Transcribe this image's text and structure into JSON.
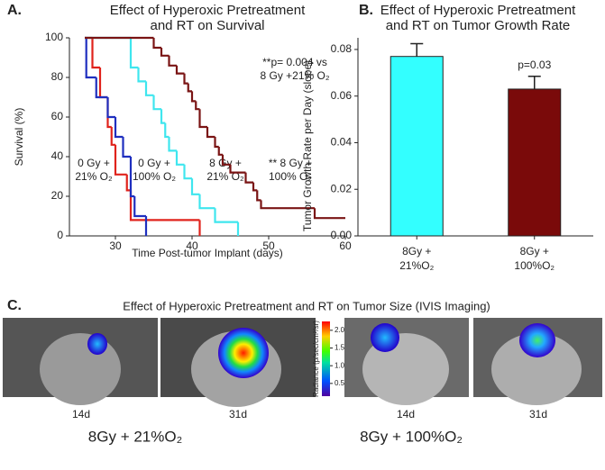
{
  "chart_data": [
    {
      "type": "step",
      "panel": "A.",
      "title": [
        "Effect of Hyperoxic Pretreatment",
        "and RT on Survival"
      ],
      "x_label": "Time Post-tumor Implant (days)",
      "y_label": "Survival (%)",
      "xlim": [
        24,
        60
      ],
      "xticks": [
        30,
        40,
        50,
        60
      ],
      "ylim": [
        0,
        100
      ],
      "yticks": [
        0,
        20,
        40,
        60,
        80,
        100
      ],
      "annotation": [
        "**p= 0.004 vs",
        "8 Gy +21% O₂"
      ],
      "series": [
        {
          "name_lines": [
            "0 Gy +",
            "21% O₂"
          ],
          "color": "#e0231c",
          "x": [
            26,
            27,
            28,
            29,
            29.5,
            30,
            31.5,
            32,
            41
          ],
          "values": [
            100,
            85,
            70,
            55,
            46,
            31,
            23,
            8,
            0
          ]
        },
        {
          "name_lines": [
            "0 Gy +",
            "100% O₂"
          ],
          "color": "#1f2fbf",
          "x": [
            26,
            26.2,
            27.5,
            29,
            30,
            31,
            32,
            32.5,
            34
          ],
          "values": [
            100,
            80,
            70,
            60,
            50,
            40,
            20,
            10,
            0
          ]
        },
        {
          "name_lines": [
            "8 Gy +",
            "21% O₂"
          ],
          "color": "#3fe6ee",
          "x": [
            26,
            32,
            33,
            34,
            35,
            36,
            36.5,
            37,
            38,
            39,
            40,
            41,
            43,
            46
          ],
          "values": [
            100,
            85,
            78,
            71,
            64,
            57,
            50,
            43,
            36,
            29,
            21,
            14,
            7,
            0
          ]
        },
        {
          "name_lines": [
            "** 8 Gy +",
            "100% O₂"
          ],
          "color": "#7a1414",
          "x": [
            26,
            35,
            36,
            37,
            38,
            39,
            39.5,
            40,
            40.5,
            41,
            42,
            43,
            43.5,
            44,
            45,
            47,
            48,
            48.5,
            49,
            56,
            60
          ],
          "values": [
            100,
            95,
            91,
            86,
            82,
            77,
            73,
            68,
            64,
            55,
            50,
            45,
            41,
            36,
            32,
            27,
            23,
            18,
            14,
            9,
            9
          ]
        }
      ]
    },
    {
      "type": "bar",
      "panel": "B.",
      "title": [
        "Effect of Hyperoxic Pretreatment",
        "and RT on Tumor Growth Rate"
      ],
      "y_label": "Tumor Growth Rate per Day (slope)",
      "categories": [
        [
          "8Gy +",
          "21%O₂"
        ],
        [
          "8Gy +",
          "100%O₂"
        ]
      ],
      "colors": [
        "#33ffff",
        "#7a0a0a"
      ],
      "values": [
        0.077,
        0.063
      ],
      "errors": [
        0.0055,
        0.0055
      ],
      "annotations": [
        null,
        "p=0.03"
      ],
      "ylim": [
        0,
        0.085
      ],
      "yticks": [
        {
          "value": 0,
          "label": "0.00"
        },
        {
          "value": 0.02,
          "label": "0.02"
        },
        {
          "value": 0.04,
          "label": "0.04"
        },
        {
          "value": 0.06,
          "label": "0.06"
        },
        {
          "value": 0.08,
          "label": "0.08"
        }
      ]
    }
  ],
  "panel_c": {
    "panel": "C.",
    "title": "Effect of Hyperoxic Pretreatment and RT on Tumor Size (IVIS Imaging)",
    "days": [
      "14d",
      "31d",
      "14d",
      "31d"
    ],
    "groups": [
      "8Gy + 21%O₂",
      "8Gy + 100%O₂"
    ],
    "colorbar": {
      "label": "Radiance (p/sec/cm²/sr)",
      "lim": [
        0.14,
        2.25
      ],
      "ticks": [
        {
          "value": 0.5,
          "label": "0.5"
        },
        {
          "value": 1,
          "label": "1.0"
        },
        {
          "value": 1.5,
          "label": "1.5"
        },
        {
          "value": 2,
          "label": "2.0"
        }
      ]
    }
  }
}
